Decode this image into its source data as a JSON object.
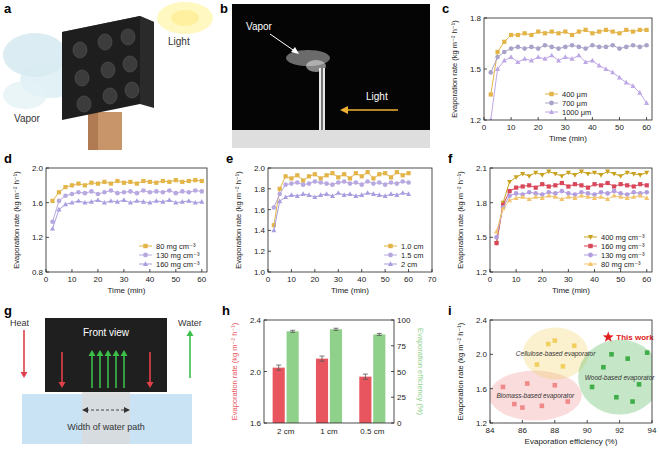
{
  "chart_data": [
    {
      "type": "line",
      "label": "c",
      "xlabel": "Time (min)",
      "ylabel": "Evaporation rate (kg m⁻² h⁻¹)",
      "x": [
        2.5,
        5,
        7.5,
        10,
        12.5,
        15,
        17.5,
        20,
        22.5,
        25,
        27.5,
        30,
        32.5,
        35,
        37.5,
        40,
        42.5,
        45,
        47.5,
        50,
        52.5,
        55,
        57.5,
        60
      ],
      "xlim": [
        0,
        62
      ],
      "xticks": [
        0,
        10,
        20,
        30,
        40,
        50,
        60
      ],
      "ylim": [
        1.2,
        1.8
      ],
      "yticks": [
        1.2,
        1.5,
        1.8
      ],
      "legend": "lower center",
      "series": [
        {
          "name": "400 μm",
          "color": "#e3b448",
          "marker": "square",
          "values": [
            1.35,
            1.6,
            1.66,
            1.7,
            1.7,
            1.71,
            1.7,
            1.72,
            1.71,
            1.72,
            1.71,
            1.72,
            1.7,
            1.72,
            1.73,
            1.71,
            1.72,
            1.73,
            1.72,
            1.71,
            1.73,
            1.72,
            1.73,
            1.73
          ]
        },
        {
          "name": "700 μm",
          "color": "#a9a3c9",
          "marker": "circle",
          "values": [
            1.48,
            1.57,
            1.6,
            1.62,
            1.63,
            1.62,
            1.63,
            1.62,
            1.64,
            1.63,
            1.62,
            1.63,
            1.64,
            1.63,
            1.62,
            1.64,
            1.63,
            1.63,
            1.64,
            1.62,
            1.63,
            1.64,
            1.63,
            1.64
          ]
        },
        {
          "name": "1000 μm",
          "color": "#bea8e6",
          "marker": "triangle",
          "values": [
            1.2,
            1.5,
            1.55,
            1.57,
            1.54,
            1.56,
            1.55,
            1.57,
            1.56,
            1.58,
            1.55,
            1.57,
            1.56,
            1.58,
            1.54,
            1.55,
            1.52,
            1.5,
            1.48,
            1.45,
            1.42,
            1.4,
            1.36,
            1.3
          ]
        }
      ]
    },
    {
      "type": "line",
      "label": "d",
      "xlabel": "Time (min)",
      "ylabel": "Evaporation rate (kg m⁻² h⁻¹)",
      "x": [
        2.5,
        5,
        7.5,
        10,
        12.5,
        15,
        17.5,
        20,
        22.5,
        25,
        27.5,
        30,
        32.5,
        35,
        37.5,
        40,
        42.5,
        45,
        47.5,
        50,
        52.5,
        55,
        57.5,
        60
      ],
      "xlim": [
        0,
        62
      ],
      "xticks": [
        0,
        10,
        20,
        30,
        40,
        50,
        60
      ],
      "ylim": [
        0.8,
        2.0
      ],
      "yticks": [
        0.8,
        1.2,
        1.6,
        {
          "value": 2.0,
          "label": "2.0"
        }
      ],
      "legend": "lower right",
      "series": [
        {
          "name": "80 mg cm⁻³",
          "color": "#e3b448",
          "marker": "square",
          "values": [
            1.62,
            1.72,
            1.78,
            1.8,
            1.82,
            1.8,
            1.83,
            1.82,
            1.84,
            1.82,
            1.85,
            1.83,
            1.84,
            1.82,
            1.85,
            1.84,
            1.83,
            1.85,
            1.84,
            1.86,
            1.84,
            1.85,
            1.86,
            1.85
          ]
        },
        {
          "name": "130 mg cm⁻³",
          "color": "#b8a8e0",
          "marker": "circle",
          "values": [
            1.38,
            1.62,
            1.68,
            1.7,
            1.72,
            1.71,
            1.73,
            1.7,
            1.72,
            1.74,
            1.71,
            1.72,
            1.73,
            1.71,
            1.74,
            1.72,
            1.73,
            1.72,
            1.74,
            1.71,
            1.73,
            1.72,
            1.74,
            1.73
          ]
        },
        {
          "name": "160 mg cm⁻³",
          "color": "#a99ee0",
          "marker": "triangle",
          "values": [
            1.3,
            1.52,
            1.58,
            1.6,
            1.62,
            1.6,
            1.61,
            1.63,
            1.6,
            1.62,
            1.61,
            1.63,
            1.6,
            1.62,
            1.61,
            1.6,
            1.62,
            1.61,
            1.63,
            1.6,
            1.61,
            1.62,
            1.6,
            1.61
          ]
        }
      ]
    },
    {
      "type": "line",
      "label": "e",
      "xlabel": "Time (min)",
      "ylabel": "Evaporation rate (kg m⁻² h⁻¹)",
      "x": [
        2.5,
        5,
        7.5,
        10,
        12.5,
        15,
        17.5,
        20,
        22.5,
        25,
        27.5,
        30,
        32.5,
        35,
        37.5,
        40,
        42.5,
        45,
        47.5,
        50,
        52.5,
        55,
        57.5,
        60
      ],
      "xlim": [
        0,
        70
      ],
      "xticks": [
        0,
        10,
        20,
        30,
        40,
        50,
        60,
        70
      ],
      "ylim": [
        1.0,
        2.0
      ],
      "yticks": [
        {
          "value": 1.0,
          "label": "1.0"
        },
        1.2,
        1.4,
        1.6,
        1.8,
        {
          "value": 2.0,
          "label": "2.0"
        }
      ],
      "legend": "lower right",
      "series": [
        {
          "name": "1.0 cm",
          "color": "#e3b448",
          "marker": "square",
          "values": [
            1.45,
            1.8,
            1.92,
            1.9,
            1.93,
            1.88,
            1.92,
            1.94,
            1.9,
            1.93,
            1.95,
            1.91,
            1.94,
            1.9,
            1.95,
            1.92,
            1.96,
            1.9,
            1.94,
            1.95,
            1.91,
            1.96,
            1.93,
            1.95
          ]
        },
        {
          "name": "1.5 cm",
          "color": "#b8a8e0",
          "marker": "circle",
          "values": [
            1.62,
            1.75,
            1.84,
            1.85,
            1.86,
            1.84,
            1.85,
            1.87,
            1.86,
            1.85,
            1.84,
            1.86,
            1.87,
            1.85,
            1.86,
            1.84,
            1.87,
            1.85,
            1.86,
            1.84,
            1.86,
            1.85,
            1.87,
            1.86
          ]
        },
        {
          "name": "2 cm",
          "color": "#a99ee0",
          "marker": "triangle",
          "values": [
            1.4,
            1.68,
            1.72,
            1.74,
            1.73,
            1.75,
            1.74,
            1.72,
            1.74,
            1.75,
            1.73,
            1.76,
            1.74,
            1.75,
            1.73,
            1.74,
            1.76,
            1.75,
            1.74,
            1.73,
            1.75,
            1.74,
            1.76,
            1.75
          ]
        }
      ]
    },
    {
      "type": "line",
      "label": "f",
      "xlabel": "Time (min)",
      "ylabel": "Evaporation rate (kg m⁻² h⁻¹)",
      "x": [
        2.5,
        5,
        7.5,
        10,
        12.5,
        15,
        17.5,
        20,
        22.5,
        25,
        27.5,
        30,
        32.5,
        35,
        37.5,
        40,
        42.5,
        45,
        47.5,
        50,
        52.5,
        55,
        57.5,
        60
      ],
      "xlim": [
        0,
        62
      ],
      "xticks": [
        0,
        10,
        20,
        30,
        40,
        50,
        60
      ],
      "ylim": [
        1.2,
        2.1
      ],
      "yticks": [
        1.2,
        1.5,
        1.8,
        2.1
      ],
      "legend": "lower right",
      "series": [
        {
          "name": "400 mg cm⁻³",
          "color": "#c8a21e",
          "marker": "triangle-down",
          "values": [
            1.45,
            1.8,
            1.98,
            2.02,
            2.05,
            2.03,
            2.06,
            2.04,
            2.07,
            2.05,
            2.03,
            2.06,
            2.04,
            2.07,
            2.05,
            2.06,
            2.04,
            2.07,
            2.05,
            2.03,
            2.06,
            2.05,
            2.04,
            2.06
          ]
        },
        {
          "name": "160 mg cm⁻³",
          "color": "#d9475a",
          "marker": "square",
          "values": [
            1.45,
            1.78,
            1.9,
            1.93,
            1.94,
            1.95,
            1.93,
            1.96,
            1.94,
            1.95,
            1.97,
            1.94,
            1.96,
            1.95,
            1.93,
            1.96,
            1.95,
            1.97,
            1.94,
            1.96,
            1.95,
            1.94,
            1.96,
            1.95
          ]
        },
        {
          "name": "130 mg cm⁻³",
          "color": "#b19ddf",
          "marker": "circle",
          "values": [
            1.5,
            1.76,
            1.86,
            1.88,
            1.87,
            1.89,
            1.88,
            1.87,
            1.89,
            1.88,
            1.9,
            1.88,
            1.87,
            1.89,
            1.88,
            1.87,
            1.89,
            1.88,
            1.9,
            1.88,
            1.87,
            1.89,
            1.88,
            1.89
          ]
        },
        {
          "name": "80 mg cm⁻³",
          "color": "#f2c36b",
          "marker": "triangle",
          "values": [
            1.55,
            1.75,
            1.82,
            1.84,
            1.85,
            1.83,
            1.85,
            1.84,
            1.86,
            1.85,
            1.83,
            1.85,
            1.84,
            1.86,
            1.85,
            1.84,
            1.85,
            1.83,
            1.86,
            1.85,
            1.84,
            1.85,
            1.86,
            1.84
          ]
        }
      ]
    },
    {
      "type": "bar",
      "label": "h",
      "ylabel": "Evaporation rate (kg m⁻² h⁻¹)",
      "y2label": "Evaporation efficiency (%)",
      "categories": [
        "2 cm",
        "1 cm",
        "0.5 cm"
      ],
      "ylim": [
        1.6,
        2.4
      ],
      "yticks": [
        1.6,
        {
          "value": 2.0,
          "label": "2.0"
        },
        2.4
      ],
      "y2lim": [
        0,
        100
      ],
      "y2ticks": [
        0,
        25,
        50,
        75,
        100
      ],
      "series": [
        {
          "color": "#e8555f",
          "values": [
            2.03,
            2.1,
            1.96
          ],
          "errors": [
            0.02,
            0.02,
            0.02
          ]
        },
        {
          "color": "#8fd08a",
          "axis": "y2",
          "values": [
            89,
            91,
            86
          ],
          "errors": [
            1,
            1,
            1
          ]
        }
      ]
    },
    {
      "type": "scatter",
      "label": "i",
      "xlabel": "Evaporation efficiency (%)",
      "ylabel": "Evaporation rate (kg m⁻² h⁻¹)",
      "xlim": [
        84,
        94
      ],
      "xticks": [
        84,
        86,
        88,
        90,
        92,
        94
      ],
      "ylim": [
        1.2,
        2.4
      ],
      "yticks": [
        1.2,
        1.6,
        {
          "value": 2.0,
          "label": "2.0"
        },
        2.4
      ],
      "series": [
        {
          "name": "Biomass-based evaporator",
          "color": "#f08a8a",
          "marker": "square",
          "x": [
            84.8,
            85.5,
            86.0,
            86.3,
            87.2,
            88.0,
            88.8
          ],
          "values": [
            1.62,
            1.42,
            1.38,
            1.66,
            1.4,
            1.64,
            1.45
          ]
        },
        {
          "name": "Cellulose-based evaporator",
          "color": "#f2d060",
          "marker": "square",
          "x": [
            86.9,
            87.6,
            88.0,
            88.5,
            89.2
          ],
          "values": [
            1.88,
            2.12,
            2.16,
            1.86,
            2.1
          ]
        },
        {
          "name": "Wood-based evaporator",
          "color": "#3fae49",
          "marker": "square",
          "x": [
            90.3,
            91.0,
            91.5,
            91.8,
            92.5,
            92.8,
            93.2,
            93.7
          ],
          "values": [
            1.62,
            1.85,
            2.0,
            1.5,
            1.95,
            1.45,
            1.65,
            2.02
          ]
        },
        {
          "name": "This work",
          "color": "#e02020",
          "marker": "star",
          "x": [
            91.3
          ],
          "values": [
            2.2
          ]
        }
      ]
    }
  ],
  "diagrams": {
    "a": {
      "label": "a",
      "vapor": "Vapor",
      "light": "Light"
    },
    "b": {
      "label": "b",
      "vapor": "Vapor",
      "light": "Light"
    },
    "g": {
      "label": "g",
      "front_view": "Front view",
      "heat": "Heat",
      "water": "Water",
      "width": "Width of water path"
    }
  }
}
